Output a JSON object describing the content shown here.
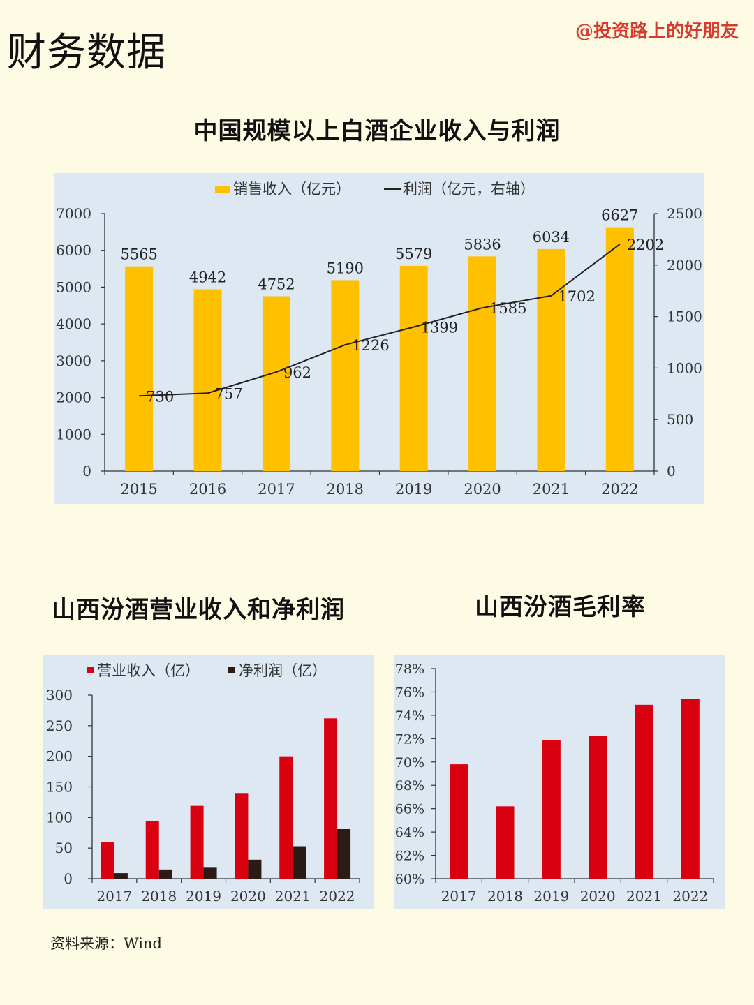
{
  "page": {
    "title": "财务数据",
    "watermark": "@投资路上的好朋友",
    "source": "资料来源：Wind"
  },
  "colors": {
    "gold": "#ffc000",
    "red": "#d9000f",
    "dark": "#2b1a16",
    "line": "#222222",
    "panel": "#dde8f3"
  },
  "chart_data": [
    {
      "type": "bar",
      "title": "中国规模以上白酒企业收入与利润",
      "categories": [
        "2015",
        "2016",
        "2017",
        "2018",
        "2019",
        "2020",
        "2021",
        "2022"
      ],
      "series": [
        {
          "name": "销售收入（亿元）",
          "type": "bar",
          "axis": "left",
          "values": [
            5565,
            4942,
            4752,
            5190,
            5579,
            5836,
            6034,
            6627
          ],
          "labels": [
            "5565",
            "4942",
            "4752",
            "5190",
            "5579",
            "5836",
            "6034",
            "6627"
          ]
        },
        {
          "name": "利润（亿元，右轴）",
          "type": "line",
          "axis": "right",
          "values": [
            730,
            757,
            962,
            1226,
            1399,
            1585,
            1702,
            2202
          ],
          "labels": [
            "730",
            "757",
            "962",
            "1226",
            "1399",
            "1585",
            "1702",
            "2202"
          ]
        }
      ],
      "ylim": [
        0,
        7000
      ],
      "y_ticks": [
        "0",
        "1000",
        "2000",
        "3000",
        "4000",
        "5000",
        "6000",
        "7000"
      ],
      "y2lim": [
        0,
        2500
      ],
      "y2_ticks": [
        "0",
        "500",
        "1000",
        "1500",
        "2000",
        "2500"
      ],
      "legend": "top"
    },
    {
      "type": "bar",
      "title": "山西汾酒营业收入和净利润",
      "categories": [
        "2017",
        "2018",
        "2019",
        "2020",
        "2021",
        "2022"
      ],
      "series": [
        {
          "name": "营业收入（亿）",
          "values": [
            60,
            94,
            119,
            140,
            200,
            262
          ]
        },
        {
          "name": "净利润（亿）",
          "values": [
            9,
            15,
            19,
            31,
            53,
            81
          ]
        }
      ],
      "ylim": [
        0,
        300
      ],
      "y_ticks": [
        "0",
        "50",
        "100",
        "150",
        "200",
        "250",
        "300"
      ],
      "legend": "top"
    },
    {
      "type": "bar",
      "title": "山西汾酒毛利率",
      "categories": [
        "2017",
        "2018",
        "2019",
        "2020",
        "2021",
        "2022"
      ],
      "series": [
        {
          "values": [
            69.8,
            66.2,
            71.9,
            72.2,
            74.9,
            75.4
          ]
        }
      ],
      "ylim": [
        60,
        78
      ],
      "y_ticks": [
        "60%",
        "62%",
        "64%",
        "66%",
        "68%",
        "70%",
        "72%",
        "74%",
        "76%",
        "78%"
      ]
    }
  ]
}
